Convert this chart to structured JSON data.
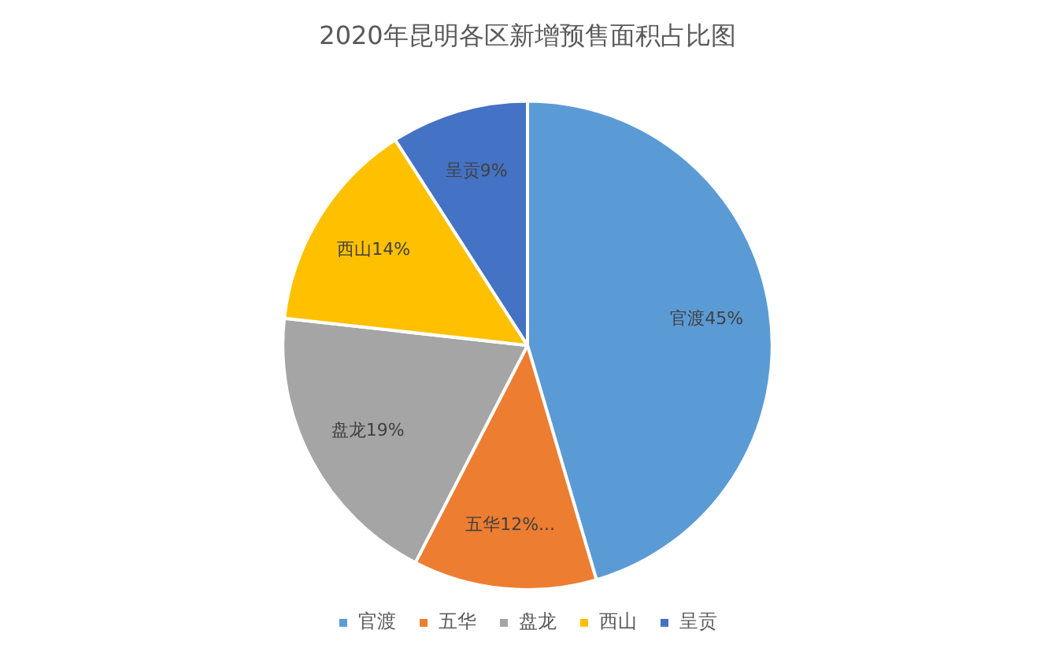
{
  "chart_data": {
    "type": "pie",
    "title": "2020年昆明各区新增预售面积占比图",
    "categories": [
      "官渡",
      "五华",
      "盘龙",
      "西山",
      "呈贡"
    ],
    "values": [
      45,
      12,
      19,
      14,
      9
    ],
    "colors": [
      "#5b9bd5",
      "#ed7d31",
      "#a5a5a5",
      "#ffc000",
      "#4472c4"
    ],
    "value_labels": [
      "官渡45%",
      "五华12%...",
      "盘龙19%",
      "西山14%",
      "呈贡9%"
    ],
    "legend": "bottom"
  }
}
